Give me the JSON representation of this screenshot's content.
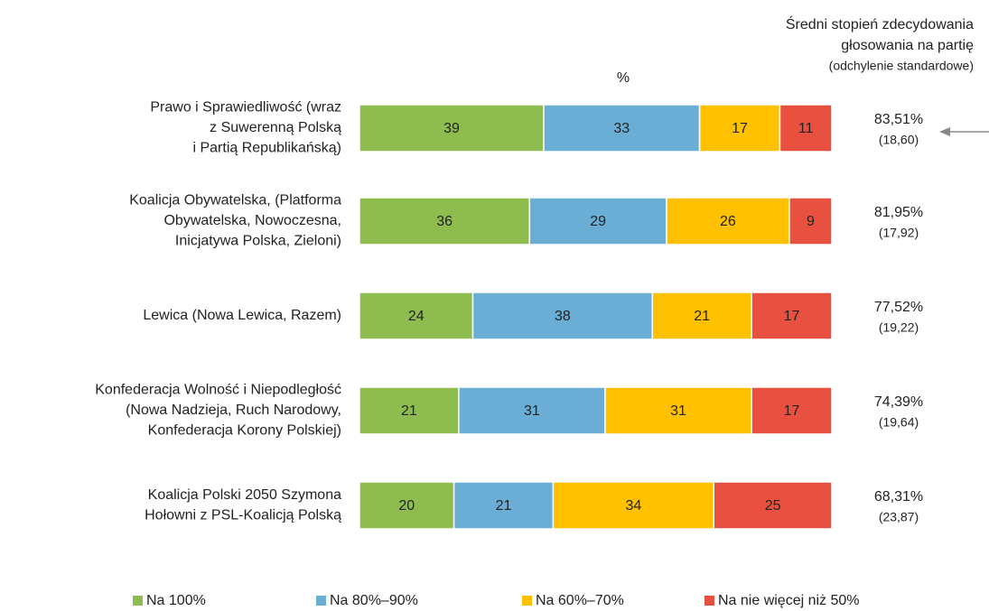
{
  "chart_data": {
    "type": "stacked_barh",
    "axis_label": "%",
    "right_header": [
      "Średni stopień zdecydowania",
      "głosowania na partię"
    ],
    "right_subheader": "(odchylenie standardowe)",
    "categories": [
      [
        "Prawo i Sprawiedliwość (wraz",
        "z Suwerenną Polską",
        "i Partią Republikańską)"
      ],
      [
        "Koalicja Obywatelska, (Platforma",
        "Obywatelska, Nowoczesna,",
        "Inicjatywa Polska, Zieloni)"
      ],
      [
        "Lewica (Nowa Lewica, Razem)"
      ],
      [
        "Konfederacja Wolność i Niepodległość",
        "(Nowa Nadzieja, Ruch Narodowy,",
        "Konfederacja Korony Polskiej)"
      ],
      [
        "Koalicja Polski 2050 Szymona",
        "Hołowni z PSL-Koalicją Polską"
      ]
    ],
    "series": [
      {
        "name": "Na 100%",
        "color": "#8fbc4f",
        "values": [
          39,
          36,
          24,
          21,
          20
        ]
      },
      {
        "name": "Na 80%–90%",
        "color": "#6aaed6",
        "values": [
          33,
          29,
          38,
          31,
          21
        ]
      },
      {
        "name": "Na 60%–70%",
        "color": "#ffc000",
        "values": [
          17,
          26,
          21,
          31,
          34
        ]
      },
      {
        "name": "Na nie więcej niż 50%",
        "color": "#e8503f",
        "values": [
          11,
          9,
          17,
          17,
          25
        ]
      }
    ],
    "mean": [
      83.51,
      81.95,
      77.52,
      74.39,
      68.31
    ],
    "mean_labels": [
      "83,51%",
      "81,95%",
      "77,52%",
      "74,39%",
      "68,31%"
    ],
    "sd": [
      18.6,
      17.92,
      19.22,
      19.64,
      23.87
    ],
    "sd_labels": [
      "(18,60)",
      "(17,92)",
      "(19,22)",
      "(19,64)",
      "(23,87)"
    ],
    "xlim": [
      0,
      100
    ]
  }
}
